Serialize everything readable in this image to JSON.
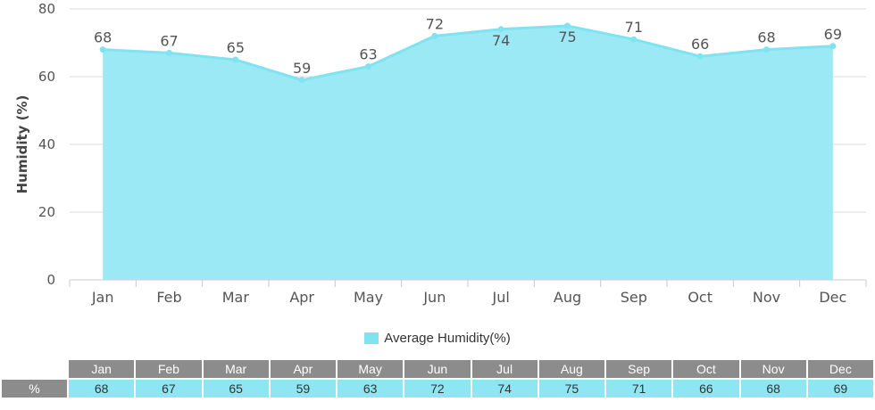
{
  "chart_data": {
    "type": "area",
    "categories": [
      "Jan",
      "Feb",
      "Mar",
      "Apr",
      "May",
      "Jun",
      "Jul",
      "Aug",
      "Sep",
      "Oct",
      "Nov",
      "Dec"
    ],
    "series": [
      {
        "name": "Average Humidity(%)",
        "values": [
          68,
          67,
          65,
          59,
          63,
          72,
          74,
          75,
          71,
          66,
          68,
          69
        ],
        "color": "#8ee6f3"
      }
    ],
    "title": "",
    "xlabel": "",
    "ylabel": "Humidity (%)",
    "ylim": [
      0,
      80
    ],
    "yticks": [
      0,
      20,
      40,
      60,
      80
    ],
    "grid": true,
    "legend_position": "bottom-center",
    "data_labels": true,
    "line_color": "#7fe3f2",
    "fill_color": "#9ae9f5"
  },
  "legend": {
    "label": "Average Humidity(%)",
    "color": "#7fe3f2"
  },
  "table": {
    "row_label": "%",
    "months": [
      "Jan",
      "Feb",
      "Mar",
      "Apr",
      "May",
      "Jun",
      "Jul",
      "Aug",
      "Sep",
      "Oct",
      "Nov",
      "Dec"
    ],
    "values": [
      "68",
      "67",
      "65",
      "59",
      "63",
      "72",
      "74",
      "75",
      "71",
      "66",
      "68",
      "69"
    ]
  }
}
